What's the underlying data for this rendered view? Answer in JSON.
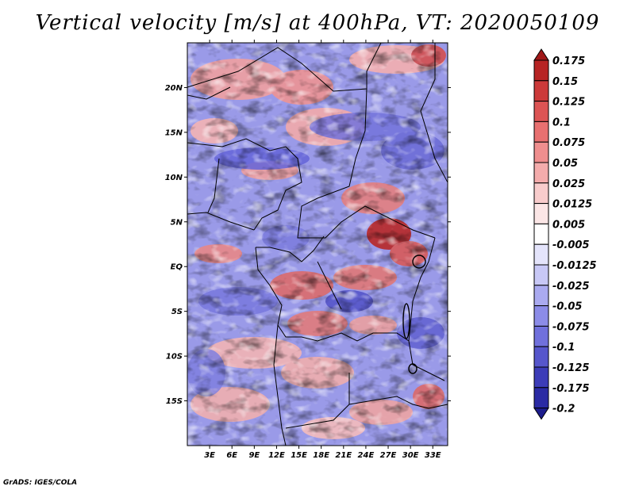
{
  "title": "Vertical velocity [m/s] at 400hPa, VT: 2020050109",
  "credit": "GrADS: IGES/COLA",
  "axes": {
    "lat_labels": [
      "20N",
      "15N",
      "10N",
      "5N",
      "EQ",
      "5S",
      "10S",
      "15S"
    ],
    "lat_values": [
      20,
      15,
      10,
      5,
      0,
      -5,
      -10,
      -15
    ],
    "lon_labels": [
      "3E",
      "6E",
      "9E",
      "12E",
      "15E",
      "18E",
      "21E",
      "24E",
      "27E",
      "30E",
      "33E"
    ],
    "lon_values": [
      3,
      6,
      9,
      12,
      15,
      18,
      21,
      24,
      27,
      30,
      33
    ],
    "lon_range": [
      0,
      35
    ],
    "lat_range": [
      -20,
      25
    ]
  },
  "colorbar": {
    "labels": [
      "0.175",
      "0.15",
      "0.125",
      "0.1",
      "0.075",
      "0.05",
      "0.025",
      "0.0125",
      "0.005",
      "-0.005",
      "-0.0125",
      "-0.025",
      "-0.05",
      "-0.075",
      "-0.1",
      "-0.125",
      "-0.175",
      "-0.2"
    ],
    "colors": [
      "#a01818",
      "#b72424",
      "#cc3a3a",
      "#dc5454",
      "#e87070",
      "#ef8e8e",
      "#f4acac",
      "#f8cccc",
      "#fbe6e6",
      "#ffffff",
      "#e4e4fb",
      "#c8c8f6",
      "#aaaaf0",
      "#8c8ce8",
      "#7070dc",
      "#5656cc",
      "#3c3cb8",
      "#2a2aa4",
      "#1c1c8c"
    ]
  }
}
